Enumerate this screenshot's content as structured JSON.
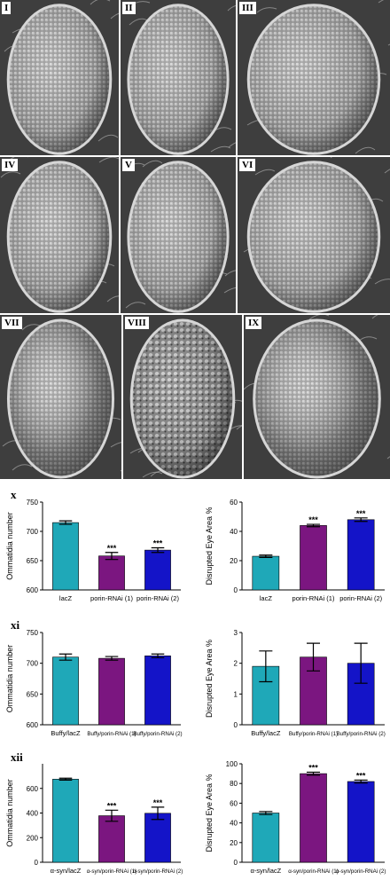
{
  "panels": [
    {
      "label": "I"
    },
    {
      "label": "II"
    },
    {
      "label": "III"
    },
    {
      "label": "IV"
    },
    {
      "label": "V"
    },
    {
      "label": "VI"
    },
    {
      "label": "VII"
    },
    {
      "label": "VIII"
    },
    {
      "label": "IX"
    }
  ],
  "rows": [
    {
      "label": "x"
    },
    {
      "label": "xi"
    },
    {
      "label": "xii"
    }
  ],
  "colors": {
    "cyan": "#1fa8b8",
    "purple": "#7b1680",
    "blue": "#1414c8"
  },
  "chart_data": [
    {
      "type": "bar",
      "categories": [
        "lacZ",
        "porin-RNAi (1)",
        "porin-RNAi (2)"
      ],
      "values": [
        715,
        658,
        668
      ],
      "errors": [
        3,
        6,
        4
      ],
      "annotations": [
        "",
        "***",
        "***"
      ],
      "ylabel": "Ommatidia number",
      "ylim": [
        600,
        750
      ],
      "yticks": [
        "600",
        "650",
        "700",
        "750"
      ]
    },
    {
      "type": "bar",
      "categories": [
        "lacZ",
        "porin-RNAi (1)",
        "porin-RNAi (2)"
      ],
      "values": [
        23,
        44,
        48
      ],
      "errors": [
        0.8,
        0.8,
        1.2
      ],
      "annotations": [
        "",
        "***",
        "***"
      ],
      "ylabel": "Disrupted Eye Area %",
      "ylim": [
        0,
        60
      ],
      "yticks": [
        "0",
        "20",
        "40",
        "60"
      ]
    },
    {
      "type": "bar",
      "categories": [
        "Buffy/lacZ",
        "Buffy/porin-RNAi (1)",
        "Buffy/porin-RNAi (2)"
      ],
      "values": [
        710,
        708,
        712
      ],
      "errors": [
        5,
        3,
        3
      ],
      "annotations": [
        "",
        "",
        ""
      ],
      "ylabel": "Ommatidia number",
      "ylim": [
        600,
        750
      ],
      "yticks": [
        "600",
        "650",
        "700",
        "750"
      ]
    },
    {
      "type": "bar",
      "categories": [
        "Buffy/lacZ",
        "Buffy/porin-RNAi (1)",
        "Buffy/porin-RNAi (2)"
      ],
      "values": [
        1.9,
        2.2,
        2.0
      ],
      "errors": [
        0.5,
        0.45,
        0.65
      ],
      "annotations": [
        "",
        "",
        ""
      ],
      "ylabel": "Disrupted Eye Area %",
      "ylim": [
        0,
        3
      ],
      "yticks": [
        "0",
        "1",
        "2",
        "3"
      ]
    },
    {
      "type": "bar",
      "categories": [
        "α-syn/lacZ",
        "α-syn/porin-RNAi (1)",
        "α-syn/porin-RNAi (2)"
      ],
      "values": [
        675,
        378,
        398
      ],
      "errors": [
        8,
        45,
        50
      ],
      "annotations": [
        "",
        "***",
        "***"
      ],
      "ylabel": "Ommatidia number",
      "ylim": [
        0,
        800
      ],
      "yticks": [
        "0",
        "200",
        "400",
        "600"
      ]
    },
    {
      "type": "bar",
      "categories": [
        "α-syn/lacZ",
        "α-syn/porin-RNAi (1)",
        "α-syn/porin-RNAi (2)"
      ],
      "values": [
        50,
        90,
        82
      ],
      "errors": [
        1.5,
        1.5,
        1.5
      ],
      "annotations": [
        "",
        "***",
        "***"
      ],
      "ylabel": "Disrupted Eye Area %",
      "ylim": [
        0,
        100
      ],
      "yticks": [
        "0",
        "20",
        "40",
        "60",
        "80",
        "100"
      ]
    }
  ]
}
